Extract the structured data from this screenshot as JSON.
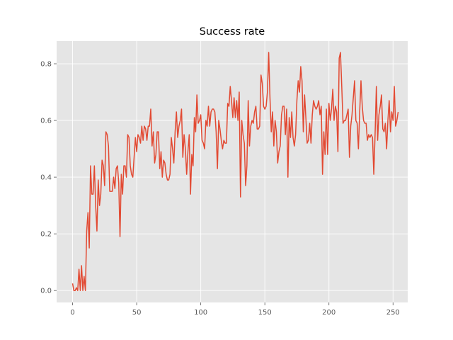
{
  "chart_data": {
    "type": "line",
    "title": "Success rate",
    "xlabel": "",
    "ylabel": "",
    "xlim": [
      -12.45,
      261.45
    ],
    "ylim": [
      -0.042,
      0.88
    ],
    "xticks": [
      0,
      50,
      100,
      150,
      200,
      250
    ],
    "yticks": [
      0.0,
      0.2,
      0.4,
      0.6,
      0.8
    ],
    "ytick_labels": [
      "0.0",
      "0.2",
      "0.4",
      "0.6",
      "0.8"
    ],
    "grid": true,
    "legend": null,
    "colors": {
      "background": "#E5E5E5",
      "grid": "#FFFFFF",
      "line": "#E24A33",
      "text": "#555555"
    },
    "series": [
      {
        "values": [
          0.025,
          0.0,
          0.0,
          0.01,
          0.0,
          0.075,
          0.0,
          0.088,
          0.0,
          0.05,
          0.0,
          0.21,
          0.275,
          0.15,
          0.44,
          0.34,
          0.34,
          0.44,
          0.3,
          0.21,
          0.39,
          0.3,
          0.34,
          0.46,
          0.44,
          0.37,
          0.56,
          0.55,
          0.51,
          0.35,
          0.35,
          0.35,
          0.4,
          0.36,
          0.43,
          0.44,
          0.38,
          0.19,
          0.41,
          0.34,
          0.44,
          0.44,
          0.4,
          0.55,
          0.54,
          0.44,
          0.41,
          0.4,
          0.47,
          0.54,
          0.49,
          0.55,
          0.54,
          0.52,
          0.58,
          0.53,
          0.58,
          0.57,
          0.53,
          0.58,
          0.58,
          0.64,
          0.51,
          0.56,
          0.45,
          0.48,
          0.56,
          0.56,
          0.43,
          0.49,
          0.4,
          0.46,
          0.45,
          0.41,
          0.39,
          0.39,
          0.41,
          0.54,
          0.5,
          0.45,
          0.56,
          0.63,
          0.54,
          0.58,
          0.6,
          0.64,
          0.47,
          0.55,
          0.5,
          0.41,
          0.49,
          0.55,
          0.34,
          0.48,
          0.44,
          0.61,
          0.56,
          0.69,
          0.59,
          0.6,
          0.62,
          0.53,
          0.52,
          0.5,
          0.6,
          0.58,
          0.65,
          0.58,
          0.63,
          0.64,
          0.64,
          0.63,
          0.56,
          0.43,
          0.6,
          0.57,
          0.53,
          0.5,
          0.53,
          0.52,
          0.52,
          0.66,
          0.65,
          0.72,
          0.67,
          0.61,
          0.68,
          0.61,
          0.67,
          0.6,
          0.7,
          0.33,
          0.6,
          0.55,
          0.52,
          0.37,
          0.44,
          0.67,
          0.51,
          0.58,
          0.6,
          0.59,
          0.63,
          0.65,
          0.57,
          0.57,
          0.58,
          0.76,
          0.73,
          0.65,
          0.64,
          0.65,
          0.7,
          0.84,
          0.68,
          0.56,
          0.63,
          0.51,
          0.6,
          0.56,
          0.45,
          0.49,
          0.51,
          0.62,
          0.65,
          0.65,
          0.55,
          0.64,
          0.4,
          0.61,
          0.54,
          0.63,
          0.54,
          0.51,
          0.55,
          0.67,
          0.74,
          0.7,
          0.79,
          0.74,
          0.56,
          0.69,
          0.61,
          0.52,
          0.53,
          0.59,
          0.52,
          0.62,
          0.67,
          0.65,
          0.64,
          0.65,
          0.67,
          0.62,
          0.65,
          0.41,
          0.56,
          0.48,
          0.64,
          0.48,
          0.66,
          0.6,
          0.64,
          0.71,
          0.6,
          0.65,
          0.63,
          0.49,
          0.82,
          0.84,
          0.72,
          0.59,
          0.6,
          0.6,
          0.62,
          0.64,
          0.47,
          0.58,
          0.62,
          0.68,
          0.74,
          0.6,
          0.59,
          0.5,
          0.63,
          0.74,
          0.65,
          0.6,
          0.59,
          0.59,
          0.53,
          0.55,
          0.54,
          0.55,
          0.54,
          0.41,
          0.55,
          0.72,
          0.53,
          0.62,
          0.65,
          0.69,
          0.57,
          0.56,
          0.59,
          0.5,
          0.6,
          0.67,
          0.56,
          0.63,
          0.6,
          0.72,
          0.58,
          0.6,
          0.63
        ]
      }
    ]
  }
}
